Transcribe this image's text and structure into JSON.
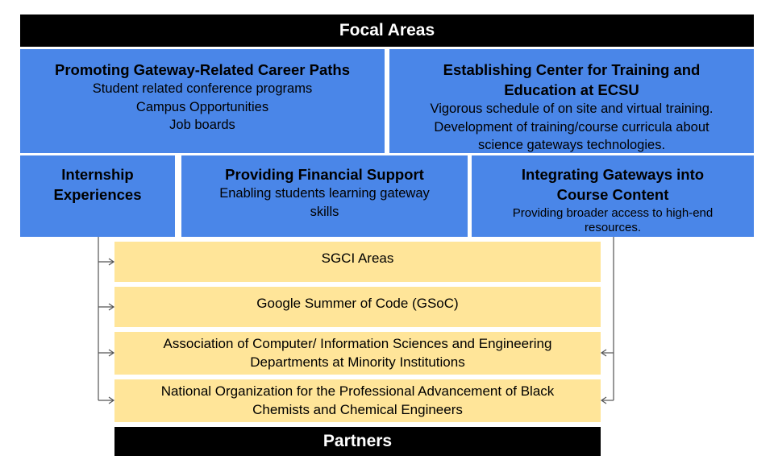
{
  "focal_header": "Focal Areas",
  "partners_footer": "Partners",
  "focal_areas": {
    "career_paths": {
      "title": "Promoting Gateway-Related Career Paths",
      "lines": [
        "Student related conference programs",
        "Campus Opportunities",
        "Job boards"
      ]
    },
    "training_center": {
      "title_lines": [
        "Establishing Center for Training and",
        "Education at ECSU"
      ],
      "lines": [
        "Vigorous schedule of on site and virtual training.",
        "Development of training/course curricula about",
        "science gateways technologies."
      ]
    },
    "internship": {
      "title_lines": [
        "Internship",
        "Experiences"
      ]
    },
    "financial_support": {
      "title": "Providing Financial Support",
      "lines": [
        "Enabling students learning gateway",
        "skills"
      ]
    },
    "integrating_gateways": {
      "title_lines": [
        "Integrating Gateways into",
        "Course Content"
      ],
      "lines": [
        "Providing broader access to high-end",
        "resources."
      ]
    }
  },
  "partners": [
    {
      "lines": [
        "SGCI Areas"
      ]
    },
    {
      "lines": [
        "Google Summer of Code (GSoC)"
      ]
    },
    {
      "lines": [
        "Association of Computer/ Information Sciences and Engineering",
        "Departments at Minority Institutions"
      ]
    },
    {
      "lines": [
        "National Organization for the Professional Advancement of Black",
        "Chemists and Chemical Engineers"
      ]
    }
  ],
  "colors": {
    "header_bg": "#000000",
    "focal_box": "#4a86e8",
    "partner_box": "#ffe599",
    "connector": "#555555"
  }
}
